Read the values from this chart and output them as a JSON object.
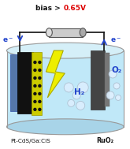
{
  "title_black": "bias > ",
  "title_red": "0.65V",
  "label_left": "Pt-CdS/Ga:CIS",
  "label_right": "RuO₂",
  "h2_label": "H₂",
  "o2_label": "O₂",
  "fig_bg": "#ffffff",
  "tank_fill": "#c0e8f8",
  "tank_top_fill": "#d5eff8",
  "tank_edge": "#999999",
  "wire_color": "#111111",
  "resistor_fill": "#cccccc",
  "resistor_edge": "#555555",
  "arrow_color": "#2244cc",
  "elec_left_black": "#111111",
  "elec_left_blue": "#5577aa",
  "elec_left_yellow": "#cccc00",
  "elec_right": "#555555",
  "elec_right_light": "#888888",
  "bolt_fill": "#eeee00",
  "bolt_edge": "#aaa800",
  "bubble_fill": "#e0f0ff",
  "bubble_edge": "#aabbcc",
  "text_color": "#111111",
  "blue_color": "#2244cc",
  "red_color": "#dd0000"
}
